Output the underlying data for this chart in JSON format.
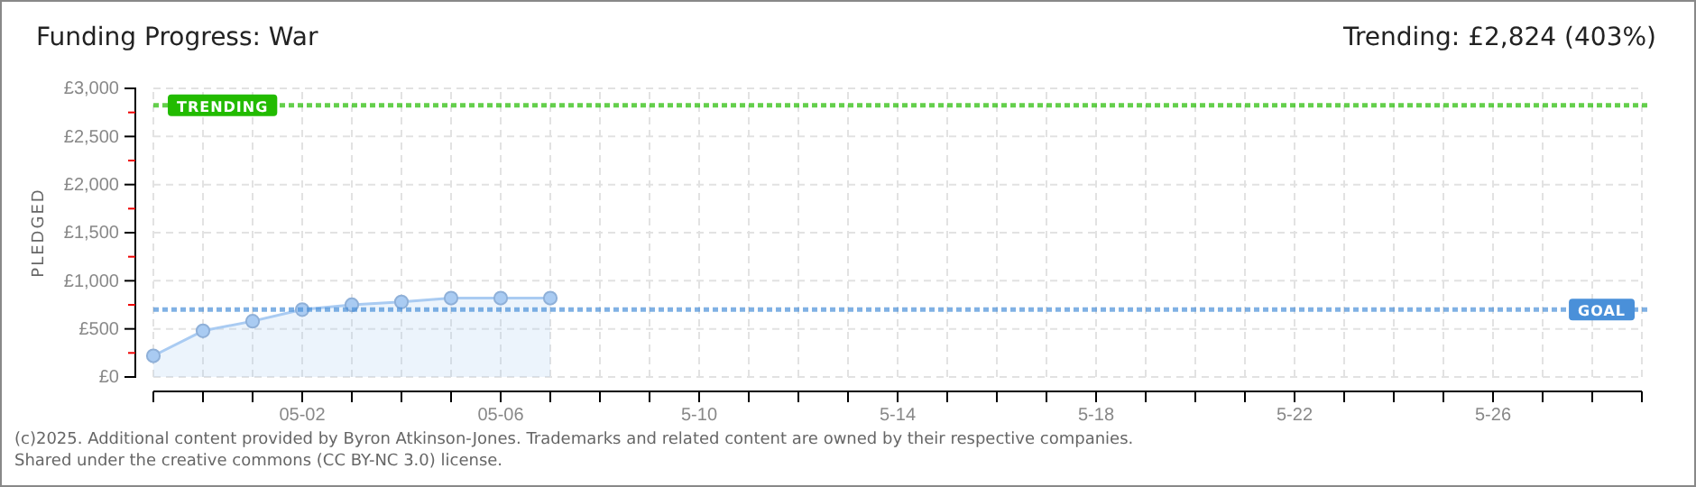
{
  "chart_data": {
    "type": "area",
    "title": "Funding Progress: War",
    "subtitle": "Trending: £2,824 (403%)",
    "ylabel": "PLEDGED",
    "x": [
      "2025-04-29",
      "2025-04-30",
      "2025-05-01",
      "2025-05-02",
      "2025-05-03",
      "2025-05-04",
      "2025-05-05",
      "2025-05-06",
      "2025-05-07"
    ],
    "series": [
      {
        "color": "#a9cbf2",
        "values": [
          220,
          480,
          580,
          700,
          750,
          780,
          820,
          820,
          820
        ]
      }
    ],
    "marker": "circle",
    "grid": true,
    "xlim": [
      "2025-04-29",
      "2025-05-29"
    ],
    "xticks": [
      {
        "value": "2025-04-29",
        "label": null
      },
      {
        "value": "2025-04-30",
        "label": null
      },
      {
        "value": "2025-05-01",
        "label": null
      },
      {
        "value": "2025-05-02",
        "label": "05-02"
      },
      {
        "value": "2025-05-03",
        "label": null
      },
      {
        "value": "2025-05-04",
        "label": null
      },
      {
        "value": "2025-05-05",
        "label": null
      },
      {
        "value": "2025-05-06",
        "label": "05-06"
      },
      {
        "value": "2025-05-07",
        "label": null
      },
      {
        "value": "2025-05-08",
        "label": null
      },
      {
        "value": "2025-05-09",
        "label": null
      },
      {
        "value": "2025-05-10",
        "label": "5-10"
      },
      {
        "value": "2025-05-11",
        "label": null
      },
      {
        "value": "2025-05-12",
        "label": null
      },
      {
        "value": "2025-05-13",
        "label": null
      },
      {
        "value": "2025-05-14",
        "label": "5-14"
      },
      {
        "value": "2025-05-15",
        "label": null
      },
      {
        "value": "2025-05-16",
        "label": null
      },
      {
        "value": "2025-05-17",
        "label": null
      },
      {
        "value": "2025-05-18",
        "label": "5-18"
      },
      {
        "value": "2025-05-19",
        "label": null
      },
      {
        "value": "2025-05-20",
        "label": null
      },
      {
        "value": "2025-05-21",
        "label": null
      },
      {
        "value": "2025-05-22",
        "label": "5-22"
      },
      {
        "value": "2025-05-23",
        "label": null
      },
      {
        "value": "2025-05-24",
        "label": null
      },
      {
        "value": "2025-05-25",
        "label": null
      },
      {
        "value": "2025-05-26",
        "label": "5-26"
      },
      {
        "value": "2025-05-27",
        "label": null
      },
      {
        "value": "2025-05-28",
        "label": null
      },
      {
        "value": "2025-05-29",
        "label": null
      }
    ],
    "ylim": [
      0,
      3000
    ],
    "yticks": [
      {
        "value": 0,
        "label": "£0"
      },
      {
        "value": 250,
        "label": null
      },
      {
        "value": 500,
        "label": "£500"
      },
      {
        "value": 750,
        "label": null
      },
      {
        "value": 1000,
        "label": "£1,000"
      },
      {
        "value": 1250,
        "label": null
      },
      {
        "value": 1500,
        "label": "£1,500"
      },
      {
        "value": 1750,
        "label": null
      },
      {
        "value": 2000,
        "label": "£2,000"
      },
      {
        "value": 2250,
        "label": null
      },
      {
        "value": 2500,
        "label": "£2,500"
      },
      {
        "value": 2750,
        "label": null
      },
      {
        "value": 3000,
        "label": "£3,000"
      }
    ],
    "ref_lines": [
      {
        "axis": "y",
        "value": 2824,
        "label": "TRENDING",
        "color": "#22bb00",
        "line_style": "dotted"
      },
      {
        "axis": "y",
        "value": 700,
        "label": "GOAL",
        "color": "#4a90d9",
        "line_style": "dotted"
      }
    ],
    "annotations": [
      "(c)2025. Additional content provided by Byron Atkinson-Jones. Trademarks and related content are owned by their respective companies.",
      "Shared under the creative commons (CC BY-NC 3.0) license."
    ]
  }
}
